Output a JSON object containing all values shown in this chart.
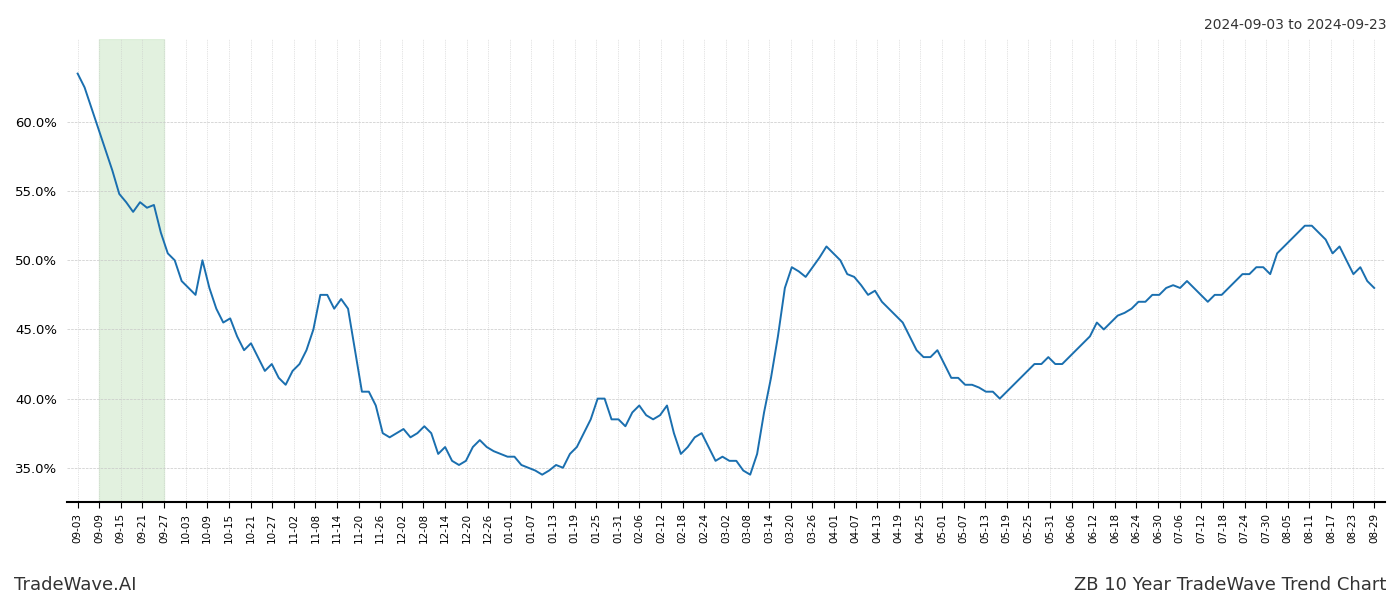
{
  "title_top_right": "2024-09-03 to 2024-09-23",
  "title_bottom_left": "TradeWave.AI",
  "title_bottom_right": "ZB 10 Year TradeWave Trend Chart",
  "line_color": "#1a6faf",
  "line_width": 1.4,
  "shade_color": "#d6ecd2",
  "shade_alpha": 0.7,
  "background_color": "#ffffff",
  "grid_color": "#c8c8c8",
  "ylim": [
    32.5,
    66.0
  ],
  "yticks": [
    35.0,
    40.0,
    45.0,
    50.0,
    55.0,
    60.0
  ],
  "x_labels": [
    "09-03",
    "09-09",
    "09-15",
    "09-21",
    "09-27",
    "10-03",
    "10-09",
    "10-15",
    "10-21",
    "10-27",
    "11-02",
    "11-08",
    "11-14",
    "11-20",
    "11-26",
    "12-02",
    "12-08",
    "12-14",
    "12-20",
    "12-26",
    "01-01",
    "01-07",
    "01-13",
    "01-19",
    "01-25",
    "01-31",
    "02-06",
    "02-12",
    "02-18",
    "02-24",
    "03-02",
    "03-08",
    "03-14",
    "03-20",
    "03-26",
    "04-01",
    "04-07",
    "04-13",
    "04-19",
    "04-25",
    "05-01",
    "05-07",
    "05-13",
    "05-19",
    "05-25",
    "05-31",
    "06-06",
    "06-12",
    "06-18",
    "06-24",
    "06-30",
    "07-06",
    "07-12",
    "07-18",
    "07-24",
    "07-30",
    "08-05",
    "08-11",
    "08-17",
    "08-23",
    "08-29"
  ],
  "shade_x_start_label": "09-09",
  "shade_x_end_label": "09-27",
  "y_values": [
    63.5,
    62.5,
    61.0,
    59.5,
    58.0,
    56.5,
    54.8,
    54.2,
    53.5,
    54.2,
    53.8,
    54.0,
    52.0,
    50.5,
    50.0,
    48.5,
    48.0,
    47.5,
    50.0,
    48.0,
    46.5,
    45.5,
    45.8,
    44.5,
    43.5,
    44.0,
    43.0,
    42.0,
    42.5,
    41.5,
    41.0,
    42.0,
    42.5,
    43.5,
    45.0,
    47.5,
    47.5,
    46.5,
    47.2,
    46.5,
    43.5,
    40.5,
    40.5,
    39.5,
    37.5,
    37.2,
    37.5,
    37.8,
    37.2,
    37.5,
    38.0,
    37.5,
    36.0,
    36.5,
    35.5,
    35.2,
    35.5,
    36.5,
    37.0,
    36.5,
    36.2,
    36.0,
    35.8,
    35.8,
    35.2,
    35.0,
    34.8,
    34.5,
    34.8,
    35.2,
    35.0,
    36.0,
    36.5,
    37.5,
    38.5,
    40.0,
    40.0,
    38.5,
    38.5,
    38.0,
    39.0,
    39.5,
    38.8,
    38.5,
    38.8,
    39.5,
    37.5,
    36.0,
    36.5,
    37.2,
    37.5,
    36.5,
    35.5,
    35.8,
    35.5,
    35.5,
    34.8,
    34.5,
    36.0,
    39.0,
    41.5,
    44.5,
    48.0,
    49.5,
    49.2,
    48.8,
    49.5,
    50.2,
    51.0,
    50.5,
    50.0,
    49.0,
    48.8,
    48.2,
    47.5,
    47.8,
    47.0,
    46.5,
    46.0,
    45.5,
    44.5,
    43.5,
    43.0,
    43.0,
    43.5,
    42.5,
    41.5,
    41.5,
    41.0,
    41.0,
    40.8,
    40.5,
    40.5,
    40.0,
    40.5,
    41.0,
    41.5,
    42.0,
    42.5,
    42.5,
    43.0,
    42.5,
    42.5,
    43.0,
    43.5,
    44.0,
    44.5,
    45.5,
    45.0,
    45.5,
    46.0,
    46.2,
    46.5,
    47.0,
    47.0,
    47.5,
    47.5,
    48.0,
    48.2,
    48.0,
    48.5,
    48.0,
    47.5,
    47.0,
    47.5,
    47.5,
    48.0,
    48.5,
    49.0,
    49.0,
    49.5,
    49.5,
    49.0,
    50.5,
    51.0,
    51.5,
    52.0,
    52.5,
    52.5,
    52.0,
    51.5,
    50.5,
    51.0,
    50.0,
    49.0,
    49.5,
    48.5,
    48.0
  ]
}
